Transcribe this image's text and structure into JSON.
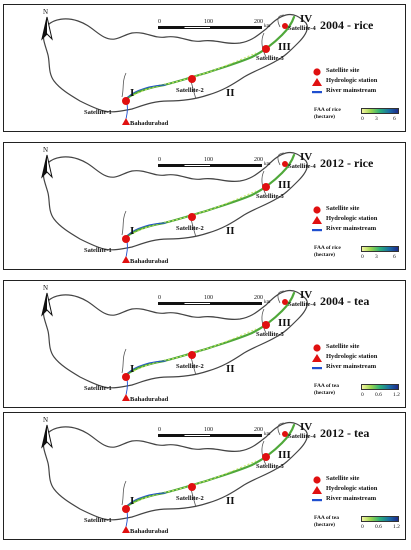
{
  "north_label": "N",
  "scale": {
    "ticks": [
      "0",
      "100",
      "200"
    ],
    "unit": "km"
  },
  "legend_items": {
    "satellite_site": "Satellite site",
    "hydrologic_station": "Hydrologic station",
    "river_mainstream": "River mainstream"
  },
  "colors": {
    "satellite_site": "#e01010",
    "hydrologic_station": "#e01010",
    "river_mainstream": "#1f4fcf",
    "river_branch": "#4fa83a",
    "boundary": "#444444"
  },
  "regions": [
    "I",
    "II",
    "III",
    "IV"
  ],
  "panels": [
    {
      "title": "2004 - rice",
      "faa_label_line1": "FAA of rice",
      "faa_label_line2": "(hectare)",
      "faa_ticks": [
        "0",
        "3",
        "6"
      ],
      "sites": {
        "s1": "Satellite-1",
        "s2": "Satellite-2",
        "s3": "Satellite-3",
        "s4": "Satellite-4",
        "station": "Bahadurabad"
      }
    },
    {
      "title": "2012 - rice",
      "faa_label_line1": "FAA of rice",
      "faa_label_line2": "(hectare)",
      "faa_ticks": [
        "0",
        "3",
        "6"
      ],
      "sites": {
        "s1": "Satellite-1",
        "s2": "Satellite-2",
        "s3": "Satellite-3",
        "s4": "Satellite-4",
        "station": "Bahadurabad"
      }
    },
    {
      "title": "2004 - tea",
      "faa_label_line1": "FAA of tea",
      "faa_label_line2": "(hectare)",
      "faa_ticks": [
        "0",
        "0.6",
        "1.2"
      ],
      "sites": {
        "s1": "Satellite-1",
        "s2": "Satellite-2",
        "s3": "Satellite-3",
        "s4": "Satellite-4",
        "station": "Bahadurabad"
      }
    },
    {
      "title": "2012 - tea",
      "faa_label_line1": "FAA of tea",
      "faa_label_line2": "(hectare)",
      "faa_ticks": [
        "0",
        "0.6",
        "1.2"
      ],
      "sites": {
        "s1": "Satellite-1",
        "s2": "Satellite-2",
        "s3": "Satellite-3",
        "s4": "Satellite-4",
        "station": "Bahadurabad"
      }
    }
  ]
}
